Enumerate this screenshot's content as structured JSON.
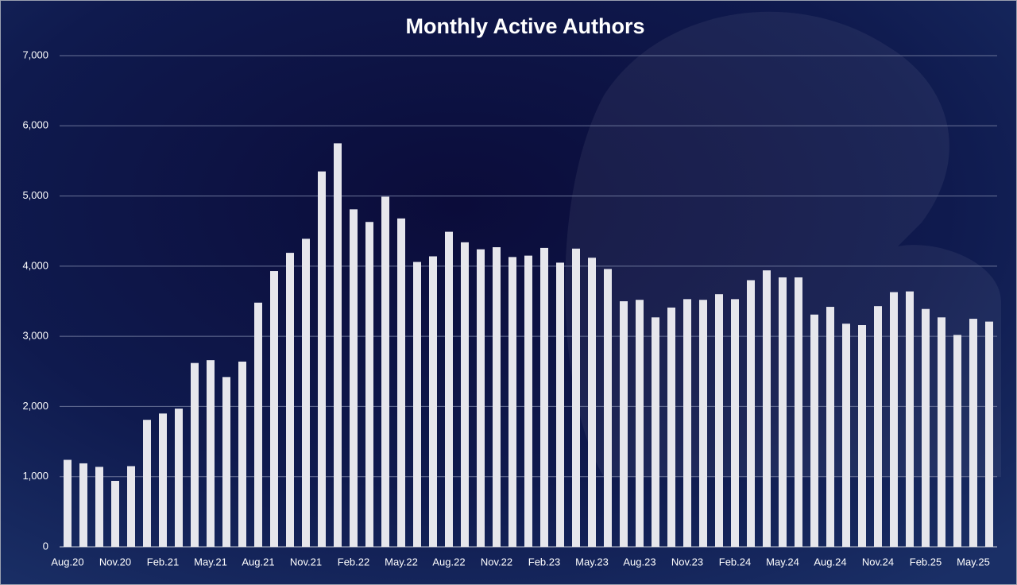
{
  "chart_data": {
    "type": "bar",
    "title": "Monthly Active Authors",
    "categories": [
      "Aug.20",
      null,
      null,
      "Nov.20",
      null,
      null,
      "Feb.21",
      null,
      null,
      "May.21",
      null,
      null,
      "Aug.21",
      null,
      null,
      "Nov.21",
      null,
      null,
      "Feb.22",
      null,
      null,
      "May.22",
      null,
      null,
      "Aug.22",
      null,
      null,
      "Nov.22",
      null,
      null,
      "Feb.23",
      null,
      null,
      "May.23",
      null,
      null,
      "Aug.23",
      null,
      null,
      "Nov.23",
      null,
      null,
      "Feb.24",
      null,
      null,
      "May.24",
      null,
      null,
      "Aug.24",
      null,
      null,
      "Nov.24",
      null,
      null,
      "Feb.25",
      null,
      null,
      "May.25",
      null
    ],
    "values": [
      1240,
      1190,
      1140,
      940,
      1150,
      1810,
      1900,
      1970,
      2620,
      2660,
      2420,
      2640,
      3480,
      3930,
      4190,
      4390,
      5350,
      5750,
      4810,
      4630,
      4990,
      4680,
      4060,
      4140,
      4490,
      4340,
      4240,
      4270,
      4130,
      4150,
      4260,
      4050,
      4250,
      4120,
      3960,
      3500,
      3520,
      3270,
      3410,
      3530,
      3520,
      3600,
      3530,
      3800,
      3940,
      3840,
      3840,
      3310,
      3420,
      3180,
      3160,
      3430,
      3630,
      3640,
      3390,
      3270,
      3020,
      3250,
      3210
    ],
    "color": "#e6e6ec",
    "ylim": [
      0,
      7000
    ],
    "yticks": [
      0,
      {
        "value": 1000,
        "label": "1,000"
      },
      {
        "value": 2000,
        "label": "2,000"
      },
      {
        "value": 3000,
        "label": "3,000"
      },
      {
        "value": 4000,
        "label": "4,000"
      },
      {
        "value": 5000,
        "label": "5,000"
      },
      {
        "value": 6000,
        "label": "6,000"
      },
      {
        "value": 7000,
        "label": "7,000"
      }
    ],
    "grid": true
  }
}
